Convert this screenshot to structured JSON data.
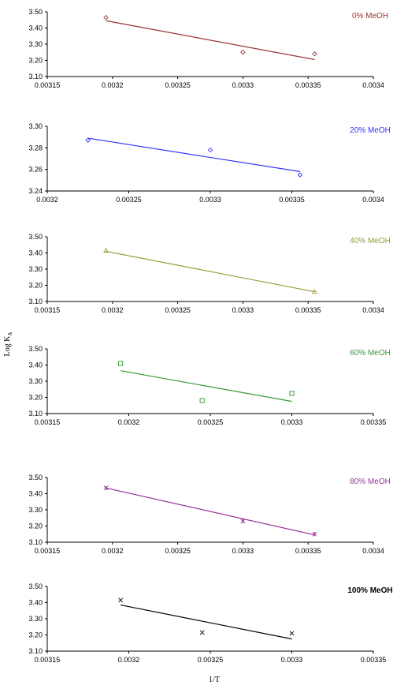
{
  "figure": {
    "ylabel_main": "Log K",
    "ylabel_sub": "A",
    "xlabel": "1/T"
  },
  "chart_data": [
    {
      "type": "scatter",
      "label": "0% MeOH",
      "color": "#993333",
      "marker": "diamond",
      "label_bold": false,
      "xlim": [
        0.00315,
        0.0034
      ],
      "ylim": [
        3.1,
        3.5
      ],
      "xticks": [
        "0.00315",
        "0.0032",
        "0.00325",
        "0.0033",
        "0.00335",
        "0.0034"
      ],
      "yticks": [
        "3.10",
        "3.20",
        "3.30",
        "3.40",
        "3.50"
      ],
      "points": [
        [
          0.003195,
          3.465
        ],
        [
          0.0033,
          3.25
        ],
        [
          0.003355,
          3.24
        ]
      ],
      "trendline": [
        [
          0.003195,
          3.445
        ],
        [
          0.003355,
          3.205
        ]
      ]
    },
    {
      "type": "scatter",
      "label": "20% MeOH",
      "color": "#3333ff",
      "marker": "diamond",
      "label_bold": false,
      "xlim": [
        0.0032,
        0.0034
      ],
      "ylim": [
        3.24,
        3.3
      ],
      "xticks": [
        "0.0032",
        "0.00325",
        "0.0033",
        "0.00335",
        "0.0034"
      ],
      "yticks": [
        "3.24",
        "3.26",
        "3.28",
        "3.30"
      ],
      "points": [
        [
          0.003225,
          3.287
        ],
        [
          0.0033,
          3.278
        ],
        [
          0.003355,
          3.255
        ]
      ],
      "trendline": [
        [
          0.003225,
          3.289
        ],
        [
          0.003355,
          3.258
        ]
      ]
    },
    {
      "type": "scatter",
      "label": "40% MeOH",
      "color": "#999933",
      "marker": "triangle",
      "label_bold": false,
      "xlim": [
        0.00315,
        0.0034
      ],
      "ylim": [
        3.1,
        3.5
      ],
      "xticks": [
        "0.00315",
        "0.0032",
        "0.00325",
        "0.0033",
        "0.00335",
        "0.0034"
      ],
      "yticks": [
        "3.10",
        "3.20",
        "3.30",
        "3.40",
        "3.50"
      ],
      "points": [
        [
          0.003195,
          3.415
        ],
        [
          0.003355,
          3.16
        ]
      ],
      "trendline": [
        [
          0.003195,
          3.41
        ],
        [
          0.003355,
          3.16
        ]
      ]
    },
    {
      "type": "scatter",
      "label": "60% MeOH",
      "color": "#339933",
      "marker": "square",
      "label_bold": false,
      "xlim": [
        0.00315,
        0.00335
      ],
      "ylim": [
        3.1,
        3.5
      ],
      "xticks": [
        "0.00315",
        "0.0032",
        "0.00325",
        "0.0033",
        "0.00335"
      ],
      "yticks": [
        "3.10",
        "3.20",
        "3.30",
        "3.40",
        "3.50"
      ],
      "points": [
        [
          0.003195,
          3.41
        ],
        [
          0.003245,
          3.18
        ],
        [
          0.0033,
          3.225
        ]
      ],
      "trendline": [
        [
          0.003195,
          3.365
        ],
        [
          0.0033,
          3.175
        ]
      ]
    },
    {
      "type": "scatter",
      "label": "80% MeOH",
      "color": "#993399",
      "marker": "star",
      "label_bold": false,
      "xlim": [
        0.00315,
        0.0034
      ],
      "ylim": [
        3.1,
        3.5
      ],
      "xticks": [
        "0.00315",
        "0.0032",
        "0.00325",
        "0.0033",
        "0.00335",
        "0.0034"
      ],
      "yticks": [
        "3.10",
        "3.20",
        "3.30",
        "3.40",
        "3.50"
      ],
      "points": [
        [
          0.003195,
          3.435
        ],
        [
          0.0033,
          3.23
        ],
        [
          0.003355,
          3.15
        ]
      ],
      "trendline": [
        [
          0.003195,
          3.435
        ],
        [
          0.003355,
          3.145
        ]
      ]
    },
    {
      "type": "scatter",
      "label": "100% MeOH",
      "color": "#000000",
      "marker": "x",
      "label_bold": true,
      "xlim": [
        0.00315,
        0.00335
      ],
      "ylim": [
        3.1,
        3.5
      ],
      "xticks": [
        "0.00315",
        "0.0032",
        "0.00325",
        "0.0033",
        "0.00335"
      ],
      "yticks": [
        "3.10",
        "3.20",
        "3.30",
        "3.40",
        "3.50"
      ],
      "points": [
        [
          0.003195,
          3.415
        ],
        [
          0.003245,
          3.215
        ],
        [
          0.0033,
          3.21
        ]
      ],
      "trendline": [
        [
          0.003195,
          3.385
        ],
        [
          0.0033,
          3.175
        ]
      ]
    }
  ]
}
